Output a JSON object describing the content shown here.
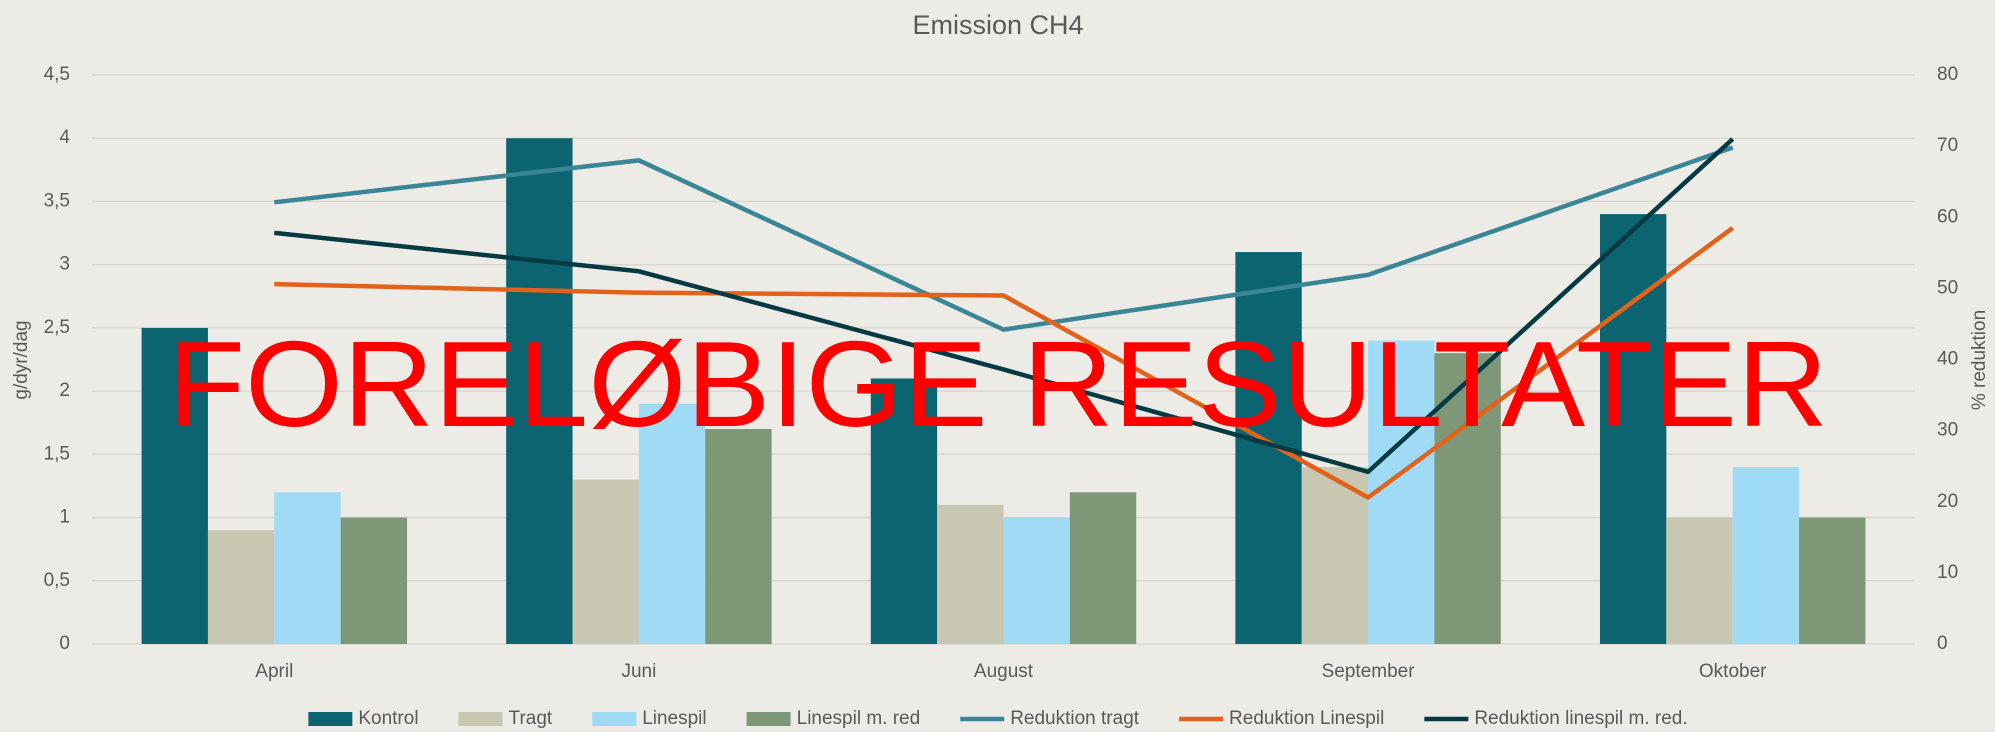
{
  "chart_data": {
    "type": "bar",
    "title": "Emission CH4",
    "ylabel": "g/dyr/dag",
    "y2label": "% reduktion",
    "annotation": "FORELØBIGE RESULTATER",
    "categories": [
      "April",
      "Juni",
      "August",
      "September",
      "Oktober"
    ],
    "series": [
      {
        "name": "Kontrol",
        "type": "bar",
        "color": "#0b6470",
        "values": [
          2.5,
          4.0,
          2.1,
          3.1,
          3.4
        ]
      },
      {
        "name": "Tragt",
        "type": "bar",
        "color": "#c8c7b2",
        "values": [
          0.9,
          1.3,
          1.1,
          1.4,
          1.0
        ]
      },
      {
        "name": "Linespil",
        "type": "bar",
        "color": "#a0dbf6",
        "values": [
          1.2,
          1.9,
          1.0,
          2.4,
          1.4
        ]
      },
      {
        "name": "Linespil m. red",
        "type": "bar",
        "color": "#7d9777",
        "values": [
          1.0,
          1.7,
          1.2,
          2.3,
          1.0
        ]
      },
      {
        "name": "Reduktion tragt",
        "type": "line",
        "axis": "y2",
        "color": "#3b8696",
        "values": [
          62.1,
          68.0,
          44.2,
          51.9,
          69.8
        ]
      },
      {
        "name": "Reduktion Linespil",
        "type": "line",
        "axis": "y2",
        "color": "#e2621b",
        "values": [
          50.6,
          49.4,
          49.0,
          20.6,
          58.5
        ]
      },
      {
        "name": "Reduktion linespil m. red.",
        "type": "line",
        "axis": "y2",
        "color": "#063a43",
        "values": [
          57.8,
          52.4,
          38.6,
          24.2,
          71.0
        ]
      }
    ],
    "ylim": [
      0,
      4.5
    ],
    "yticks": [
      0,
      {
        "value": 0.5,
        "label": "0,5"
      },
      1,
      {
        "value": 1.5,
        "label": "1,5"
      },
      2,
      {
        "value": 2.5,
        "label": "2,5"
      },
      3,
      {
        "value": 3.5,
        "label": "3,5"
      },
      4,
      {
        "value": 4.5,
        "label": "4,5"
      }
    ],
    "y2lim": [
      0,
      80
    ],
    "y2ticks": [
      0,
      10,
      20,
      30,
      40,
      50,
      60,
      70,
      80
    ],
    "grid": true,
    "legend": "bottom"
  }
}
